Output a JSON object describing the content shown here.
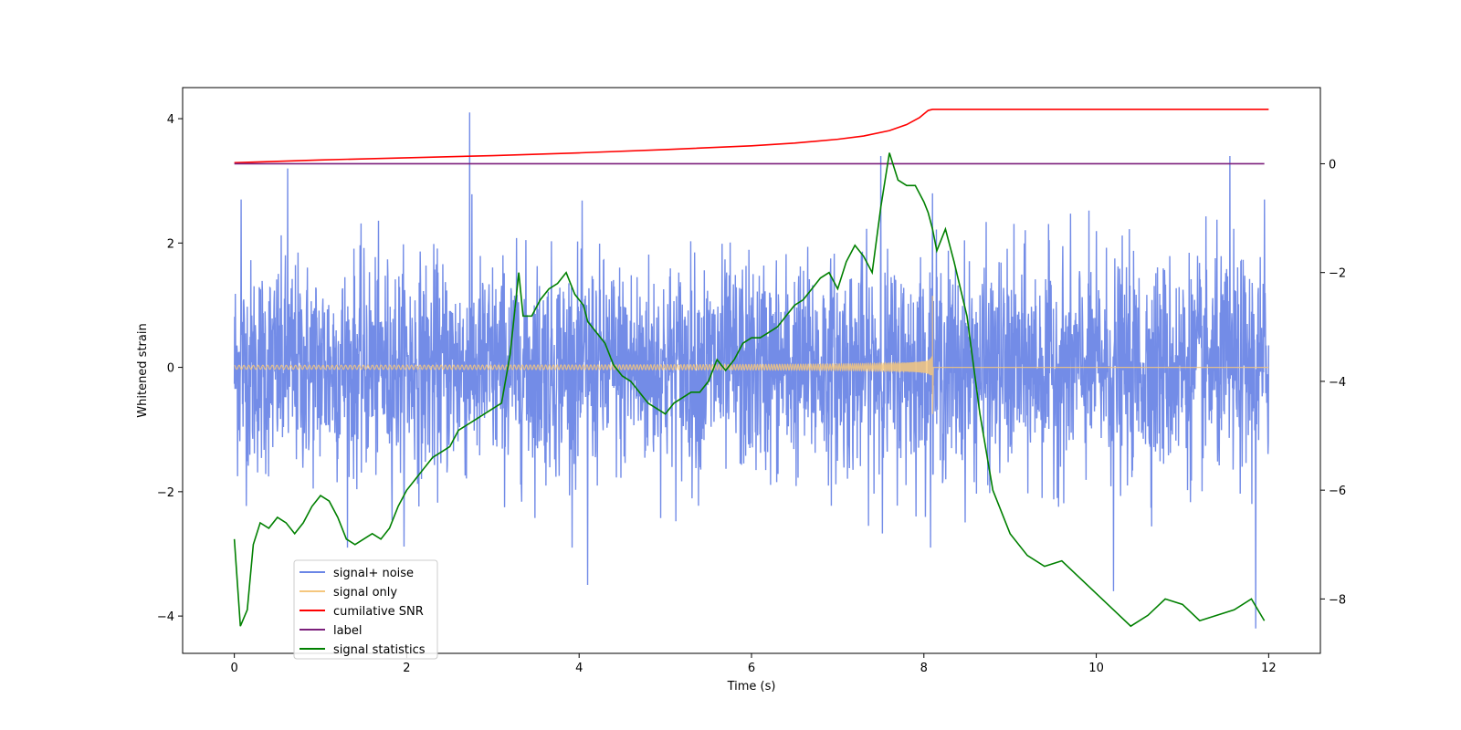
{
  "chart_data": {
    "type": "line",
    "xlabel": "Time (s)",
    "ylabel": "Whitened strain",
    "xlim": [
      -0.6,
      12.6
    ],
    "ylim": [
      -4.6,
      4.5
    ],
    "y2lim": [
      -9.0,
      1.4
    ],
    "xticks": [
      0,
      2,
      4,
      6,
      8,
      10,
      12
    ],
    "xtick_labels": [
      "0",
      "2",
      "4",
      "6",
      "8",
      "10",
      "12"
    ],
    "yticks": [
      -4,
      -2,
      0,
      2,
      4
    ],
    "ytick_labels": [
      "−4",
      "−2",
      "0",
      "2",
      "4"
    ],
    "y2ticks": [
      -8,
      -6,
      -4,
      -2,
      0
    ],
    "y2tick_labels": [
      "−8",
      "−6",
      "−4",
      "−2",
      "0"
    ],
    "grid": false,
    "legend_position": "lower-left",
    "series": [
      {
        "name": "signal+ noise",
        "axis": "left",
        "color": "#6b86e6",
        "kind": "noise",
        "x_range": [
          0,
          12
        ],
        "typical_amplitude": [
          -2.0,
          2.0
        ],
        "spikes": [
          [
            0.08,
            2.7
          ],
          [
            0.62,
            3.2
          ],
          [
            2.73,
            4.1
          ],
          [
            4.1,
            -3.5
          ],
          [
            7.5,
            3.4
          ],
          [
            8.1,
            2.8
          ],
          [
            10.2,
            -3.6
          ],
          [
            11.55,
            3.4
          ],
          [
            11.85,
            -4.2
          ],
          [
            11.95,
            2.7
          ]
        ]
      },
      {
        "name": "signal only",
        "axis": "left",
        "color": "#f5c77e",
        "kind": "chirp",
        "x_range": [
          0,
          8.1
        ],
        "merger_time": 8.1,
        "peak_amplitude": [
          -0.75,
          1.15
        ]
      },
      {
        "name": "cumilative SNR",
        "axis": "right",
        "color": "#ff0000",
        "x": [
          0,
          1,
          2,
          3,
          4,
          5,
          6,
          6.5,
          7,
          7.3,
          7.6,
          7.8,
          7.95,
          8.05,
          8.1,
          12
        ],
        "y": [
          0.02,
          0.07,
          0.11,
          0.15,
          0.2,
          0.26,
          0.33,
          0.38,
          0.45,
          0.51,
          0.61,
          0.72,
          0.85,
          0.98,
          1.0,
          1.0
        ]
      },
      {
        "name": "label",
        "axis": "right",
        "color": "#7b1f7b",
        "x": [
          0,
          11.95
        ],
        "y": [
          0.0,
          0.0
        ]
      },
      {
        "name": "signal statistics",
        "axis": "right",
        "color": "#008000",
        "x": [
          0,
          0.07,
          0.15,
          0.22,
          0.3,
          0.4,
          0.5,
          0.6,
          0.7,
          0.8,
          0.9,
          1.0,
          1.1,
          1.2,
          1.3,
          1.4,
          1.5,
          1.6,
          1.7,
          1.8,
          1.9,
          2.0,
          2.1,
          2.2,
          2.3,
          2.4,
          2.5,
          2.6,
          2.7,
          2.8,
          2.9,
          3.0,
          3.1,
          3.2,
          3.3,
          3.35,
          3.45,
          3.55,
          3.65,
          3.75,
          3.85,
          3.95,
          4.05,
          4.1,
          4.2,
          4.3,
          4.4,
          4.5,
          4.6,
          4.7,
          4.8,
          4.9,
          5.0,
          5.1,
          5.2,
          5.3,
          5.4,
          5.5,
          5.6,
          5.7,
          5.8,
          5.9,
          6.0,
          6.1,
          6.2,
          6.3,
          6.4,
          6.5,
          6.6,
          6.7,
          6.8,
          6.9,
          7.0,
          7.1,
          7.2,
          7.3,
          7.4,
          7.5,
          7.6,
          7.7,
          7.8,
          7.9,
          8.0,
          8.05,
          8.1,
          8.15,
          8.25,
          8.35,
          8.5,
          8.65,
          8.8,
          9.0,
          9.2,
          9.4,
          9.6,
          9.8,
          10.0,
          10.2,
          10.4,
          10.6,
          10.8,
          11.0,
          11.2,
          11.4,
          11.6,
          11.8,
          11.95
        ],
        "y": [
          -6.9,
          -8.5,
          -8.2,
          -7.0,
          -6.6,
          -6.7,
          -6.5,
          -6.6,
          -6.8,
          -6.6,
          -6.3,
          -6.1,
          -6.2,
          -6.5,
          -6.9,
          -7.0,
          -6.9,
          -6.8,
          -6.9,
          -6.7,
          -6.3,
          -6.0,
          -5.8,
          -5.6,
          -5.4,
          -5.3,
          -5.2,
          -4.9,
          -4.8,
          -4.7,
          -4.6,
          -4.5,
          -4.4,
          -3.5,
          -2.0,
          -2.8,
          -2.8,
          -2.5,
          -2.3,
          -2.2,
          -2.0,
          -2.4,
          -2.6,
          -2.9,
          -3.1,
          -3.3,
          -3.7,
          -3.9,
          -4.0,
          -4.2,
          -4.4,
          -4.5,
          -4.6,
          -4.4,
          -4.3,
          -4.2,
          -4.2,
          -4.0,
          -3.6,
          -3.8,
          -3.6,
          -3.3,
          -3.2,
          -3.2,
          -3.1,
          -3.0,
          -2.8,
          -2.6,
          -2.5,
          -2.3,
          -2.1,
          -2.0,
          -2.3,
          -1.8,
          -1.5,
          -1.7,
          -2.0,
          -0.8,
          0.2,
          -0.3,
          -0.4,
          -0.4,
          -0.7,
          -0.9,
          -1.2,
          -1.6,
          -1.2,
          -1.8,
          -2.8,
          -4.6,
          -6.0,
          -6.8,
          -7.2,
          -7.4,
          -7.3,
          -7.6,
          -7.9,
          -8.2,
          -8.5,
          -8.3,
          -8.0,
          -8.1,
          -8.4,
          -8.3,
          -8.2,
          -8.0,
          -8.4
        ]
      }
    ]
  }
}
